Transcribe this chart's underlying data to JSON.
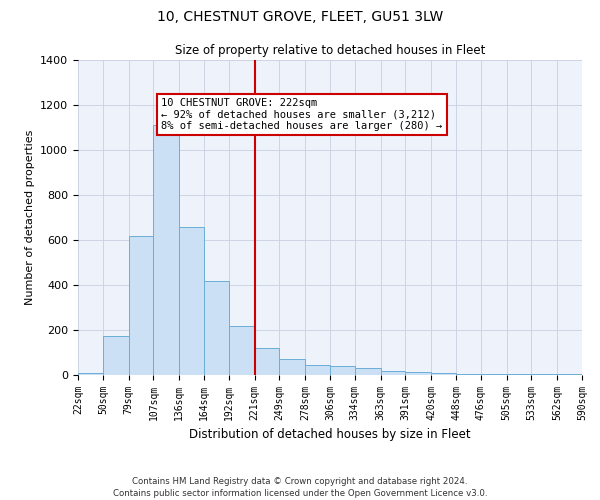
{
  "title": "10, CHESTNUT GROVE, FLEET, GU51 3LW",
  "subtitle": "Size of property relative to detached houses in Fleet",
  "xlabel": "Distribution of detached houses by size in Fleet",
  "ylabel": "Number of detached properties",
  "bar_color": "#cce0f5",
  "bar_edge_color": "#6aaed6",
  "background_color": "#edf2fb",
  "grid_color": "#c8cfe0",
  "vline_color": "#cc0000",
  "vline_x": 221,
  "annotation_text": "10 CHESTNUT GROVE: 222sqm\n← 92% of detached houses are smaller (3,212)\n8% of semi-detached houses are larger (280) →",
  "annotation_box_color": "#ffffff",
  "annotation_box_edge": "#cc0000",
  "footer_line1": "Contains HM Land Registry data © Crown copyright and database right 2024.",
  "footer_line2": "Contains public sector information licensed under the Open Government Licence v3.0.",
  "bin_edges": [
    22,
    50,
    79,
    107,
    136,
    164,
    192,
    221,
    249,
    278,
    306,
    334,
    363,
    391,
    420,
    448,
    476,
    505,
    533,
    562,
    590
  ],
  "bar_heights": [
    10,
    175,
    620,
    1110,
    660,
    420,
    220,
    120,
    70,
    45,
    40,
    30,
    20,
    15,
    8,
    5,
    5,
    5,
    5,
    5
  ],
  "ylim": [
    0,
    1400
  ],
  "yticks": [
    0,
    200,
    400,
    600,
    800,
    1000,
    1200,
    1400
  ]
}
